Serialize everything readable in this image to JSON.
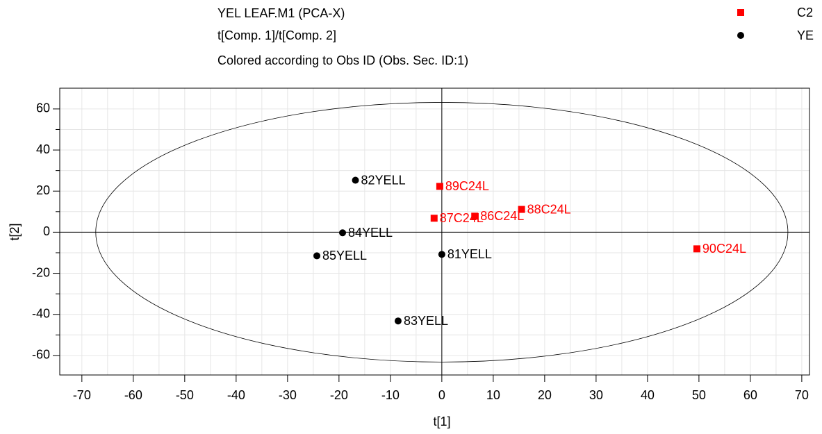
{
  "chart_data": {
    "type": "scatter",
    "title": "YEL LEAF.M1 (PCA-X)",
    "subtitle": [
      "t[Comp. 1]/t[Comp. 2]",
      "Colored according to Obs ID (Obs. Sec. ID:1)"
    ],
    "x_label": "t[1]",
    "y_label": "t[2]",
    "xlim": [
      -74.3,
      71.5
    ],
    "ylim": [
      -69.5,
      70.1
    ],
    "xticks": [
      -70,
      -60,
      -50,
      -40,
      -30,
      -20,
      -10,
      0,
      10,
      20,
      30,
      40,
      50,
      60,
      70
    ],
    "yticks": [
      -60,
      -40,
      -20,
      0,
      20,
      40,
      60
    ],
    "grid": true,
    "legend": "top-right",
    "ellipse": {
      "rx": 67.3,
      "ry": 63.2
    },
    "series": [
      {
        "name": "C2",
        "color": "#ff0000",
        "marker": "square",
        "labels": [
          "89C24L",
          "87C24L",
          "86C24L",
          "88C24L",
          "90C24L"
        ],
        "x": [
          -0.4,
          -1.5,
          6.4,
          15.5,
          49.6
        ],
        "values": [
          22.3,
          6.8,
          7.8,
          11.1,
          -8.1
        ]
      },
      {
        "name": "YE",
        "color": "#000000",
        "marker": "circle",
        "labels": [
          "82YELL",
          "84YELL",
          "85YELL",
          "81YELL",
          "83YELL"
        ],
        "x": [
          -16.8,
          -19.3,
          -24.3,
          0,
          -8.5
        ],
        "values": [
          25.3,
          -0.3,
          -11.5,
          -10.8,
          -43.2
        ]
      }
    ]
  }
}
